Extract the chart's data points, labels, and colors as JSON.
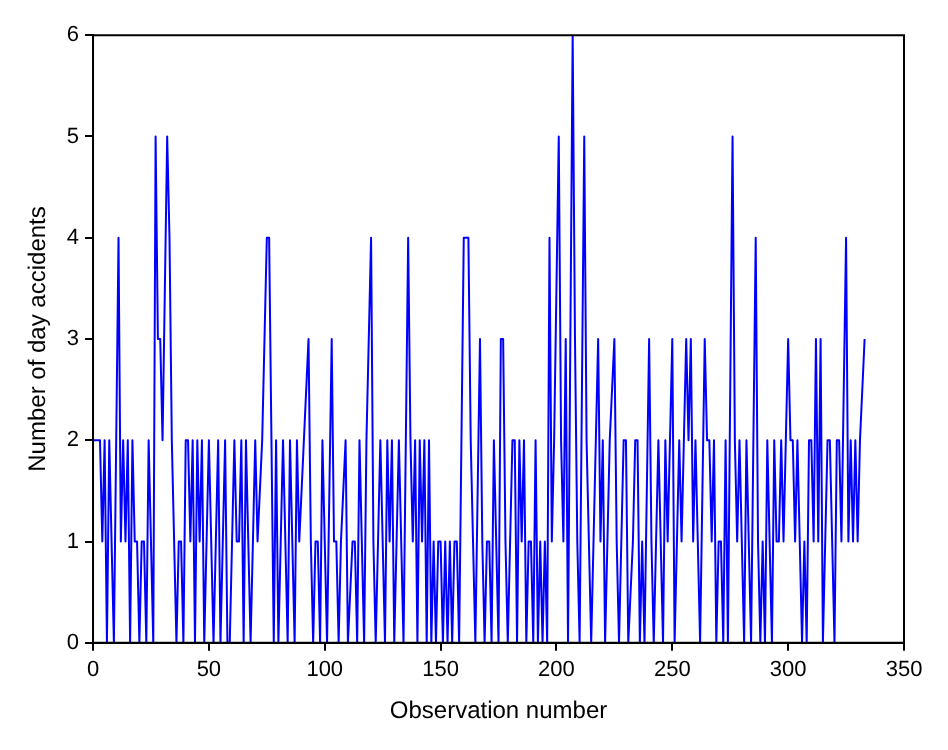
{
  "chart_data": {
    "type": "line",
    "xlabel": "Observation number",
    "ylabel": "Number of day accidents",
    "xlim": [
      0,
      350
    ],
    "xticks": [
      0,
      50,
      100,
      150,
      200,
      250,
      300,
      350
    ],
    "ylim": [
      0,
      6
    ],
    "yticks": [
      0,
      1,
      2,
      3,
      4,
      5,
      6
    ],
    "grid": false,
    "legend": false,
    "marker": "none",
    "line_style": "solid",
    "series": [
      {
        "color": "#0000ff",
        "x": [
          0,
          3,
          4,
          5,
          6,
          7,
          8,
          9,
          11,
          12,
          13,
          14,
          15,
          16,
          17,
          18,
          19,
          20,
          21,
          22,
          23,
          24,
          26,
          27,
          28,
          29,
          30,
          32,
          33,
          34,
          35,
          36,
          37,
          38,
          39,
          40,
          41,
          42,
          43,
          44,
          45,
          46,
          47,
          48,
          50,
          51,
          52,
          53,
          54,
          55,
          56,
          57,
          58,
          59,
          61,
          62,
          63,
          64,
          65,
          66,
          67,
          68,
          69,
          70,
          71,
          73,
          75,
          76,
          77,
          78,
          79,
          80,
          81,
          82,
          83,
          84,
          85,
          87,
          88,
          89,
          91,
          93,
          94,
          95,
          96,
          97,
          98,
          99,
          100,
          101,
          103,
          104,
          105,
          106,
          107,
          109,
          110,
          112,
          113,
          114,
          115,
          116,
          117,
          118,
          120,
          121,
          122,
          123,
          124,
          125,
          126,
          127,
          128,
          129,
          130,
          131,
          132,
          133,
          134,
          136,
          137,
          138,
          139,
          140,
          141,
          142,
          143,
          144,
          145,
          146,
          147,
          148,
          149,
          150,
          151,
          152,
          153,
          154,
          155,
          156,
          157,
          158,
          160,
          162,
          163,
          164,
          165,
          167,
          168,
          169,
          170,
          171,
          172,
          173,
          175,
          176,
          177,
          178,
          179,
          180,
          181,
          182,
          183,
          184,
          185,
          186,
          187,
          188,
          189,
          190,
          191,
          192,
          193,
          194,
          195,
          196,
          197,
          198,
          199,
          201,
          202,
          203,
          204,
          205,
          207,
          208,
          209,
          210,
          212,
          213,
          214,
          215,
          216,
          218,
          219,
          220,
          221,
          222,
          223,
          225,
          226,
          227,
          228,
          229,
          230,
          231,
          233,
          234,
          235,
          236,
          237,
          238,
          240,
          241,
          242,
          243,
          244,
          245,
          246,
          247,
          248,
          250,
          251,
          252,
          253,
          254,
          256,
          257,
          258,
          259,
          260,
          261,
          262,
          264,
          265,
          266,
          267,
          268,
          269,
          270,
          271,
          272,
          273,
          274,
          276,
          277,
          278,
          279,
          280,
          281,
          282,
          283,
          284,
          286,
          287,
          288,
          289,
          290,
          291,
          292,
          293,
          294,
          295,
          296,
          297,
          298,
          300,
          301,
          302,
          303,
          304,
          305,
          306,
          307,
          308,
          309,
          310,
          311,
          312,
          313,
          314,
          315,
          316,
          317,
          318,
          319,
          320,
          321,
          322,
          323,
          325,
          326,
          327,
          328,
          329,
          330,
          331,
          333
        ],
        "values": [
          2,
          2,
          1,
          2,
          0,
          2,
          1,
          0,
          4,
          1,
          2,
          1,
          2,
          0,
          2,
          1,
          1,
          0,
          1,
          1,
          0,
          2,
          0,
          5,
          3,
          3,
          2,
          5,
          4,
          2,
          1,
          0,
          1,
          1,
          0,
          2,
          2,
          1,
          2,
          0,
          2,
          1,
          2,
          0,
          2,
          1,
          0,
          1,
          2,
          0,
          1,
          2,
          0,
          0,
          2,
          1,
          1,
          2,
          0,
          2,
          1,
          0,
          1,
          2,
          1,
          2,
          4,
          4,
          2,
          0,
          2,
          0,
          1,
          2,
          1,
          0,
          2,
          0,
          2,
          1,
          2,
          3,
          1,
          0,
          1,
          1,
          0,
          2,
          1,
          0,
          3,
          1,
          1,
          0,
          1,
          2,
          0,
          1,
          1,
          0,
          2,
          1,
          0,
          2,
          4,
          1,
          0,
          1,
          2,
          1,
          0,
          2,
          1,
          2,
          0,
          1,
          2,
          1,
          0,
          4,
          2,
          1,
          2,
          0,
          2,
          1,
          2,
          0,
          2,
          0,
          1,
          0,
          1,
          1,
          0,
          1,
          0,
          1,
          0,
          1,
          1,
          0,
          4,
          4,
          2,
          1,
          0,
          3,
          1,
          0,
          1,
          1,
          0,
          2,
          0,
          3,
          3,
          1,
          0,
          1,
          2,
          2,
          0,
          2,
          1,
          2,
          0,
          1,
          1,
          0,
          2,
          0,
          1,
          0,
          1,
          0,
          4,
          1,
          2,
          5,
          2,
          1,
          3,
          0,
          6,
          3,
          1,
          0,
          5,
          2,
          1,
          0,
          1,
          3,
          1,
          2,
          0,
          1,
          2,
          3,
          1,
          0,
          1,
          2,
          2,
          0,
          1,
          2,
          2,
          0,
          1,
          0,
          3,
          1,
          0,
          1,
          2,
          1,
          0,
          2,
          1,
          3,
          0,
          1,
          2,
          1,
          3,
          2,
          3,
          1,
          2,
          1,
          0,
          3,
          2,
          2,
          1,
          2,
          0,
          1,
          1,
          0,
          2,
          0,
          5,
          2,
          1,
          2,
          1,
          0,
          2,
          1,
          0,
          4,
          1,
          0,
          1,
          0,
          2,
          1,
          0,
          2,
          1,
          1,
          2,
          1,
          3,
          2,
          2,
          1,
          2,
          1,
          0,
          1,
          0,
          2,
          2,
          1,
          3,
          1,
          3,
          0,
          1,
          2,
          2,
          1,
          0,
          2,
          2,
          1,
          4,
          1,
          2,
          1,
          2,
          1,
          2,
          3
        ]
      }
    ]
  }
}
